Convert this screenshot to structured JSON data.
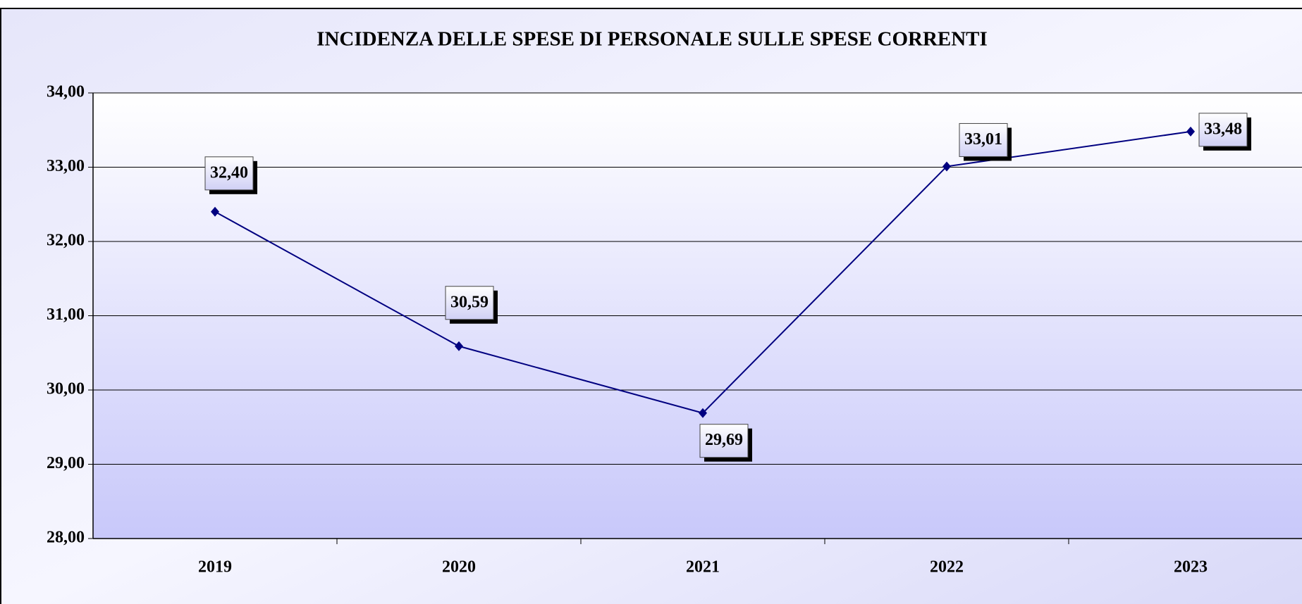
{
  "chart_data": {
    "type": "line",
    "title": "INCIDENZA DELLE SPESE DI PERSONALE SULLE SPESE CORRENTI",
    "categories": [
      "2019",
      "2020",
      "2021",
      "2022",
      "2023"
    ],
    "series": [
      {
        "color": "#000080",
        "values": [
          32.4,
          30.59,
          29.69,
          33.01,
          33.48
        ],
        "value_labels": [
          "32,40",
          "30,59",
          "29,69",
          "33,01",
          "33,48"
        ]
      }
    ],
    "ylim": [
      28,
      34
    ],
    "yticks": [
      {
        "value": 28,
        "label": "28,00"
      },
      {
        "value": 29,
        "label": "29,00"
      },
      {
        "value": 30,
        "label": "30,00"
      },
      {
        "value": 31,
        "label": "31,00"
      },
      {
        "value": 32,
        "label": "32,00"
      },
      {
        "value": 33,
        "label": "33,00"
      },
      {
        "value": 34,
        "label": "34,00"
      }
    ],
    "grid": true
  }
}
